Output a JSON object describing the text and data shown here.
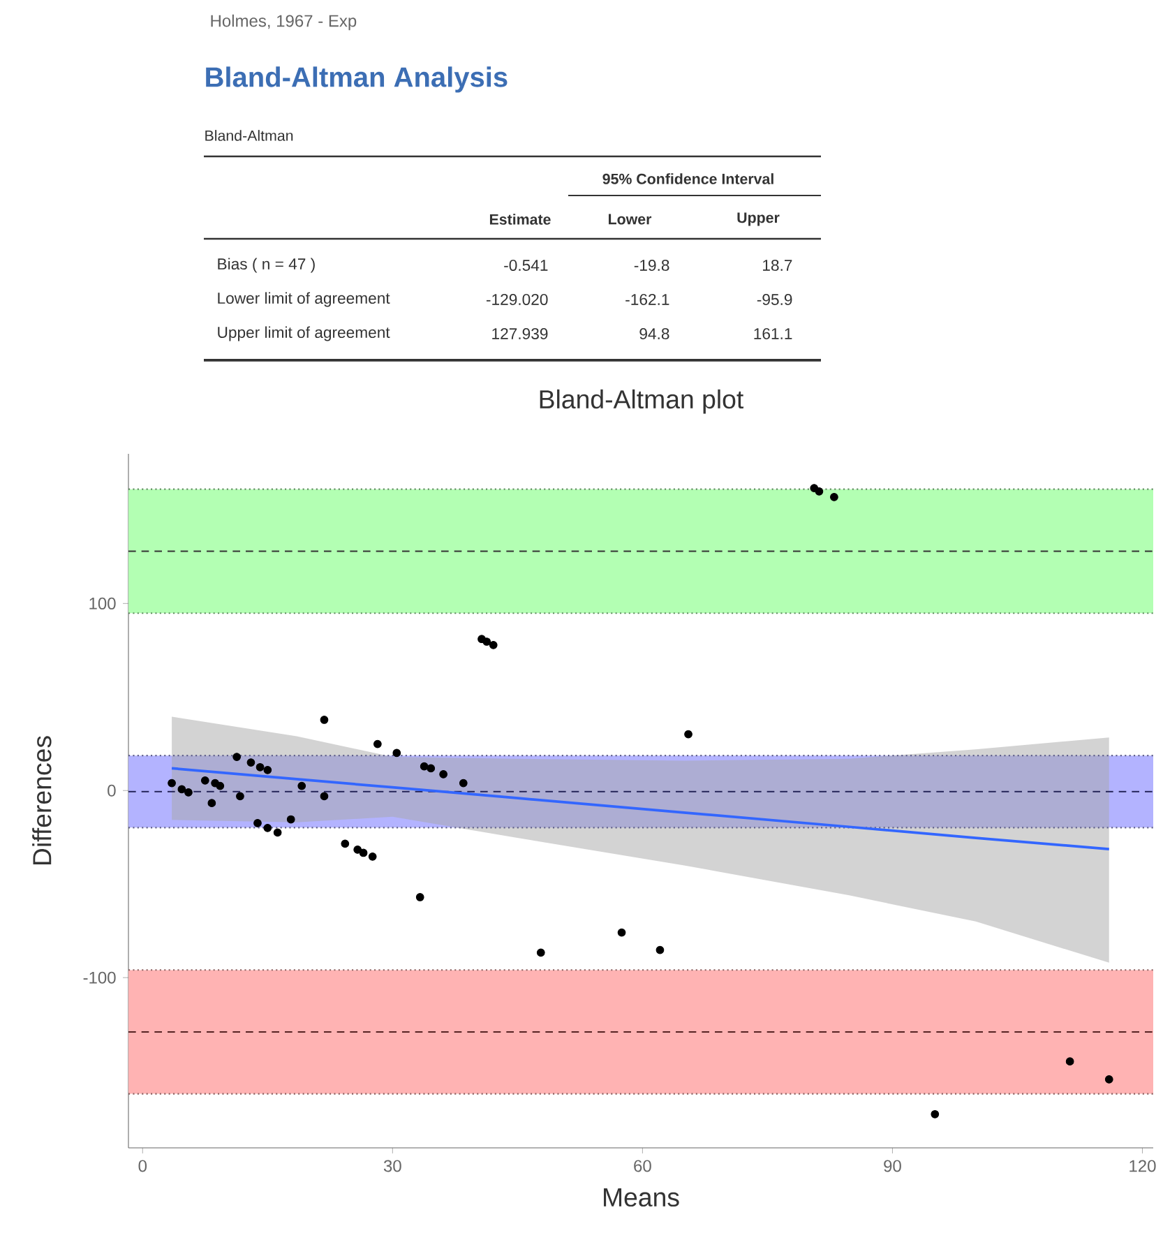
{
  "chart_data": {
    "type": "scatter",
    "title": "Bland-Altman plot",
    "xlabel": "Means",
    "ylabel": "Differences",
    "annotations": [
      "Holmes, 1967 - Exp",
      "Bland-Altman Analysis",
      "Bland-Altman",
      "95% Confidence Interval",
      "Estimate",
      "Lower",
      "Upper",
      "Bias ( n = 47 )",
      "-0.541",
      "-19.8",
      "18.7",
      "Lower limit of agreement",
      "-129.020",
      "-162.1",
      "-95.9",
      "Upper limit of agreement",
      "127.939",
      "94.8",
      "161.1"
    ],
    "xlim": [
      -1.7,
      121.3
    ],
    "ylim": [
      -191,
      180
    ],
    "xticks": [
      0,
      30,
      60,
      90,
      120
    ],
    "yticks": [
      -100,
      0,
      100
    ],
    "grid": false,
    "bands": [
      {
        "axis": "y",
        "from": 94.8,
        "to": 161.1,
        "color": "#b3ffb3"
      },
      {
        "axis": "y",
        "from": -19.8,
        "to": 18.7,
        "color": "#b3b3ff"
      },
      {
        "axis": "y",
        "from": -162.1,
        "to": -95.9,
        "color": "#ffb3b3"
      }
    ],
    "ref_lines": [
      {
        "axis": "y",
        "value": 127.939,
        "color": "#333333",
        "line_style": "dashed"
      },
      {
        "axis": "y",
        "value": -0.541,
        "color": "#222255",
        "line_style": "dashed"
      },
      {
        "axis": "y",
        "value": -129.02,
        "color": "#552222",
        "line_style": "dashed"
      },
      {
        "axis": "y",
        "value": 94.8,
        "color": "#628c62",
        "line_style": "dotted"
      },
      {
        "axis": "y",
        "value": 161.1,
        "color": "#628c62",
        "line_style": "dotted"
      },
      {
        "axis": "y",
        "value": -19.8,
        "color": "#62628c",
        "line_style": "dotted"
      },
      {
        "axis": "y",
        "value": 18.7,
        "color": "#62628c",
        "line_style": "dotted"
      },
      {
        "axis": "y",
        "value": -162.1,
        "color": "#8c6262",
        "line_style": "dotted"
      },
      {
        "axis": "y",
        "value": -95.9,
        "color": "#8c6262",
        "line_style": "dotted"
      }
    ],
    "series": [
      {
        "type": "line",
        "color": "#3366ff",
        "x": [
          3.5,
          18.5,
          30,
          44.6,
          65,
          84.8,
          100,
          116
        ],
        "values": [
          11.9,
          6.1,
          1.7,
          -3.9,
          -11.8,
          -19.4,
          -25.3,
          -31.3
        ],
        "upper": [
          39.5,
          29,
          18,
          17,
          16,
          17,
          22,
          28.4
        ],
        "lower": [
          -15.7,
          -17,
          -14,
          -25,
          -40,
          -56,
          -70,
          -92
        ]
      },
      {
        "type": "scatter",
        "color": "#000000",
        "marker": "circle",
        "x": [
          3.5,
          4.7,
          5.5,
          7.5,
          8.3,
          8.7,
          9.3,
          11.3,
          11.7,
          13,
          14.1,
          15,
          13.8,
          15,
          16.2,
          17.8,
          19.1,
          21.8,
          21.8,
          24.3,
          25.8,
          26.5,
          27.6,
          28.2,
          30.5,
          33.8,
          34.6,
          36.1,
          38.5,
          40.7,
          41.3,
          42.1,
          80.6,
          81.2,
          83,
          65.5,
          33.3,
          47.8,
          57.5,
          62.1,
          95.1,
          111.3,
          116
        ],
        "values": [
          4,
          0.7,
          -1,
          5.4,
          -6.7,
          4,
          2.5,
          18,
          -3,
          15,
          12.5,
          11,
          -17.4,
          -20,
          -22.4,
          -15.4,
          2.5,
          37.8,
          -3,
          -28.4,
          -31.6,
          -33.3,
          -35.3,
          24.9,
          20.1,
          12.9,
          11.9,
          8.7,
          4,
          81,
          79.6,
          77.8,
          161.7,
          159.9,
          156.9,
          30.1,
          -57,
          -86.6,
          -75.9,
          -85.2,
          -173,
          -144.8,
          -154.4
        ]
      }
    ]
  }
}
